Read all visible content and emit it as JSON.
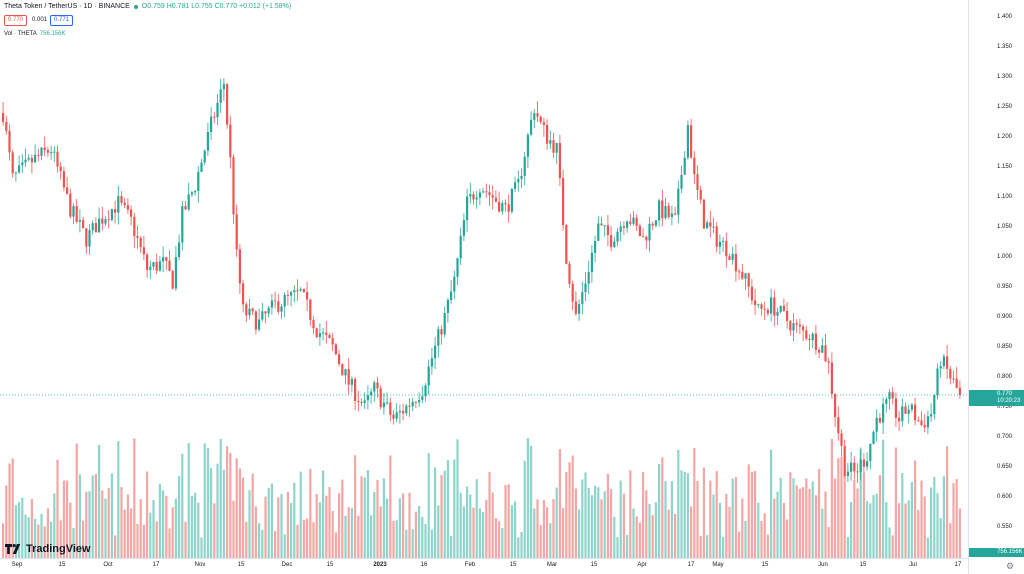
{
  "header": {
    "symbol_title": "Theta Token / TetherUS · 1D · BINANCE",
    "ohlc": "O0.759 H0.781 L0.755 C0.770 +0.012 (+1.58%)",
    "bid": "0.770",
    "spread": "0.001",
    "ask": "0.771",
    "volume_label": "Vol · THETA",
    "volume_value": "756.156K"
  },
  "price_axis": {
    "labels": [
      "1.400",
      "1.350",
      "1.300",
      "1.250",
      "1.200",
      "1.150",
      "1.100",
      "1.050",
      "1.000",
      "0.950",
      "0.900",
      "0.850",
      "0.800",
      "0.750",
      "0.700",
      "0.650",
      "0.600",
      "0.550"
    ],
    "last_price": "0.770",
    "countdown": "10:20:23",
    "volume_tag": "756.156K"
  },
  "time_axis": {
    "labels": [
      {
        "text": "Sep",
        "bold": false
      },
      {
        "text": "15",
        "bold": false
      },
      {
        "text": "Oct",
        "bold": false
      },
      {
        "text": "17",
        "bold": false
      },
      {
        "text": "Nov",
        "bold": false
      },
      {
        "text": "15",
        "bold": false
      },
      {
        "text": "Dec",
        "bold": false
      },
      {
        "text": "15",
        "bold": false
      },
      {
        "text": "2023",
        "bold": true
      },
      {
        "text": "16",
        "bold": false
      },
      {
        "text": "Feb",
        "bold": false
      },
      {
        "text": "15",
        "bold": false
      },
      {
        "text": "Mar",
        "bold": false
      },
      {
        "text": "15",
        "bold": false
      },
      {
        "text": "Apr",
        "bold": false
      },
      {
        "text": "17",
        "bold": false
      },
      {
        "text": "May",
        "bold": false
      },
      {
        "text": "15",
        "bold": false
      },
      {
        "text": "Jun",
        "bold": false
      },
      {
        "text": "15",
        "bold": false
      },
      {
        "text": "Jul",
        "bold": false
      },
      {
        "text": "17",
        "bold": false
      }
    ]
  },
  "branding": {
    "logo_text": "TradingView"
  },
  "colors": {
    "up": "#26a69a",
    "down": "#ef5350",
    "vol_up": "#8fd4cb",
    "vol_down": "#f4a6a4",
    "dotted_line": "#26a69a"
  },
  "chart_data": {
    "type": "candlestick",
    "title": "Theta Token / TetherUS · 1D · BINANCE",
    "ylim": [
      0.52,
      1.4
    ],
    "grid": false,
    "x_start": "2022-08-25",
    "x_end": "2023-07-21",
    "price_path": [
      [
        0,
        1.24
      ],
      [
        3,
        1.13
      ],
      [
        9,
        1.16
      ],
      [
        15,
        1.18
      ],
      [
        21,
        1.08
      ],
      [
        26,
        1.03
      ],
      [
        30,
        1.06
      ],
      [
        36,
        1.09
      ],
      [
        40,
        1.06
      ],
      [
        45,
        0.98
      ],
      [
        50,
        0.99
      ],
      [
        53,
        0.96
      ],
      [
        56,
        1.07
      ],
      [
        60,
        1.12
      ],
      [
        65,
        1.22
      ],
      [
        69,
        1.29
      ],
      [
        71,
        1.16
      ],
      [
        73,
        1.0
      ],
      [
        75,
        0.91
      ],
      [
        80,
        0.89
      ],
      [
        85,
        0.92
      ],
      [
        89,
        0.93
      ],
      [
        93,
        0.94
      ],
      [
        98,
        0.88
      ],
      [
        103,
        0.85
      ],
      [
        108,
        0.79
      ],
      [
        113,
        0.75
      ],
      [
        116,
        0.78
      ],
      [
        122,
        0.73
      ],
      [
        126,
        0.75
      ],
      [
        131,
        0.78
      ],
      [
        138,
        0.9
      ],
      [
        141,
        0.96
      ],
      [
        145,
        1.09
      ],
      [
        149,
        1.12
      ],
      [
        153,
        1.1
      ],
      [
        157,
        1.08
      ],
      [
        161,
        1.12
      ],
      [
        164,
        1.2
      ],
      [
        166,
        1.25
      ],
      [
        168,
        1.22
      ],
      [
        170,
        1.2
      ],
      [
        173,
        1.18
      ],
      [
        176,
        1.0
      ],
      [
        179,
        0.9
      ],
      [
        182,
        0.96
      ],
      [
        186,
        1.05
      ],
      [
        190,
        1.03
      ],
      [
        195,
        1.07
      ],
      [
        200,
        1.03
      ],
      [
        205,
        1.08
      ],
      [
        210,
        1.06
      ],
      [
        214,
        1.22
      ],
      [
        216,
        1.13
      ],
      [
        219,
        1.06
      ],
      [
        223,
        1.03
      ],
      [
        227,
        1.01
      ],
      [
        232,
        0.96
      ],
      [
        236,
        0.91
      ],
      [
        240,
        0.92
      ],
      [
        244,
        0.9
      ],
      [
        248,
        0.88
      ],
      [
        252,
        0.87
      ],
      [
        256,
        0.85
      ],
      [
        258,
        0.82
      ],
      [
        260,
        0.74
      ],
      [
        263,
        0.65
      ],
      [
        266,
        0.64
      ],
      [
        270,
        0.67
      ],
      [
        273,
        0.73
      ],
      [
        277,
        0.76
      ],
      [
        280,
        0.73
      ],
      [
        283,
        0.75
      ],
      [
        287,
        0.72
      ],
      [
        290,
        0.74
      ],
      [
        293,
        0.83
      ],
      [
        296,
        0.8
      ],
      [
        299,
        0.77
      ]
    ],
    "last_close": 0.77
  }
}
